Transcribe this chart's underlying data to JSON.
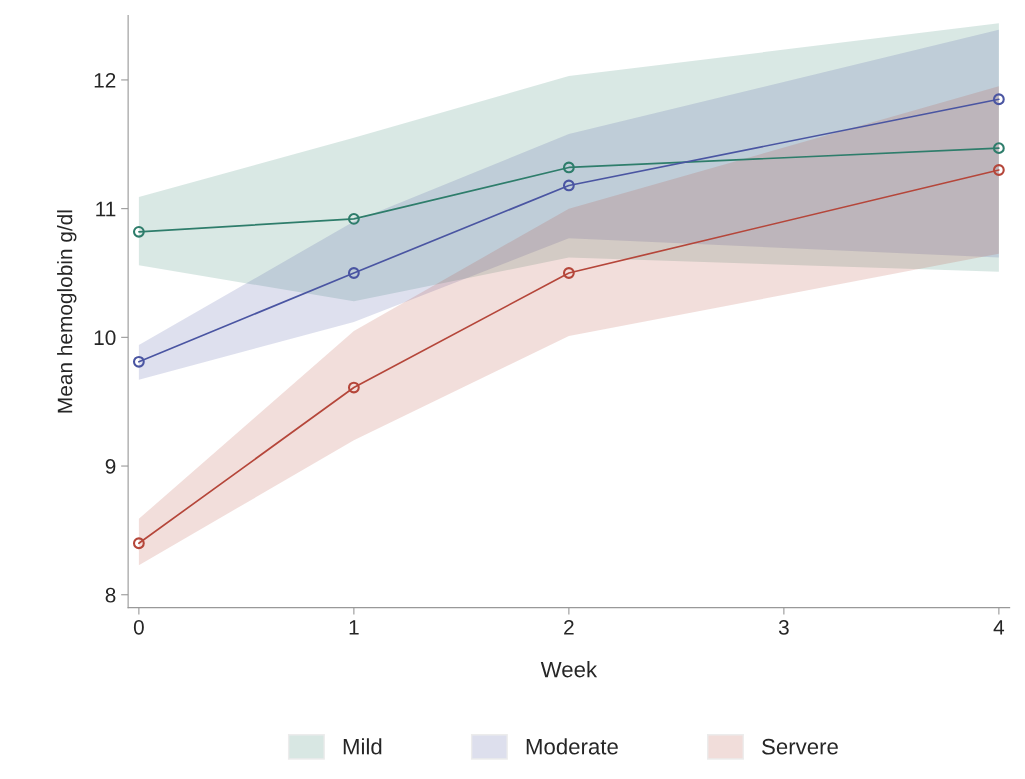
{
  "chart_data": {
    "type": "line",
    "xlabel": "Week",
    "ylabel": "Mean hemoglobin g/dl",
    "x": [
      0,
      1,
      2,
      4
    ],
    "series": [
      {
        "name": "Mild",
        "color": "#2e7d6b",
        "values": [
          10.82,
          10.92,
          11.32,
          11.47
        ],
        "lower": [
          10.56,
          10.28,
          10.62,
          10.51
        ],
        "upper": [
          11.09,
          11.55,
          12.03,
          12.44
        ]
      },
      {
        "name": "Moderate",
        "color": "#4a55a2",
        "values": [
          9.81,
          10.5,
          11.18,
          11.85
        ],
        "lower": [
          9.67,
          10.12,
          10.77,
          10.62
        ],
        "upper": [
          9.94,
          10.9,
          11.58,
          12.39
        ]
      },
      {
        "name": "Servere",
        "color": "#b5463a",
        "values": [
          8.4,
          9.61,
          10.5,
          11.3
        ],
        "lower": [
          8.23,
          9.2,
          10.01,
          10.65
        ],
        "upper": [
          8.59,
          10.05,
          11.0,
          11.95
        ]
      }
    ],
    "xlim": [
      -0.05,
      4.05
    ],
    "xticks": [
      0,
      1,
      2,
      3,
      4
    ],
    "ylim": [
      7.9,
      12.5
    ],
    "yticks": [
      8,
      9,
      10,
      11,
      12
    ],
    "marker": "circle",
    "line_style": "solid",
    "grid": false,
    "legend": "bottom"
  }
}
